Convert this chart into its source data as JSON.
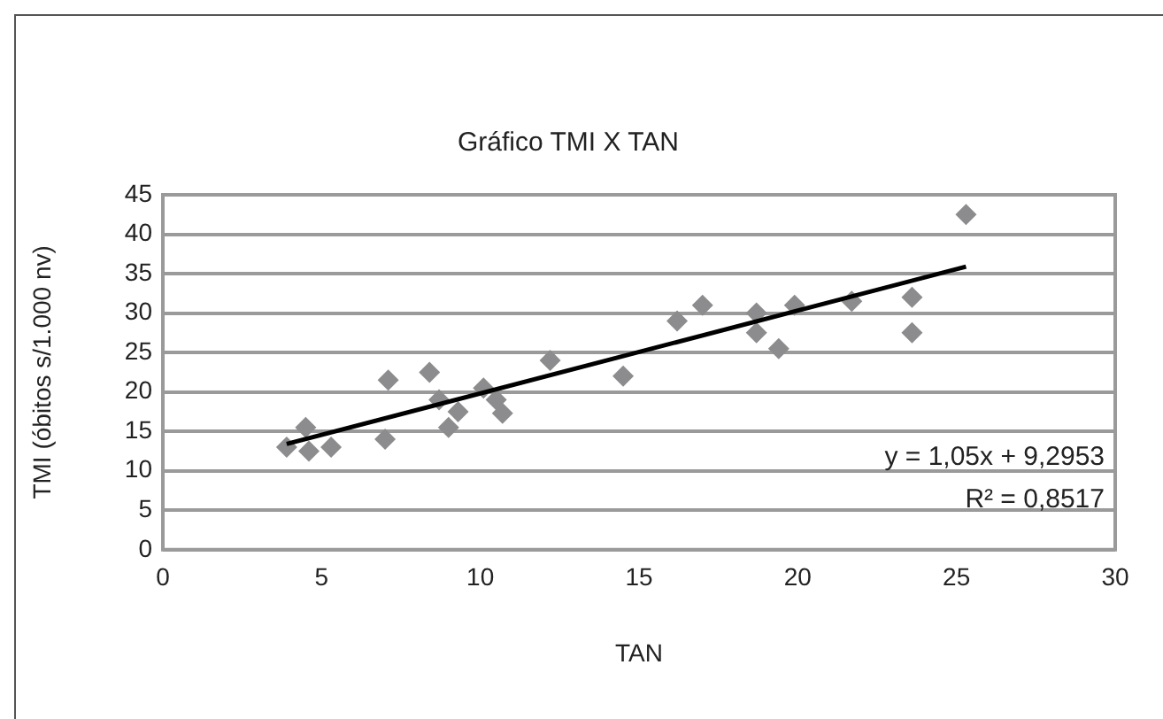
{
  "chart_data": {
    "type": "scatter",
    "title": "Gráfico TMI X TAN",
    "xlabel": "TAN",
    "ylabel": "TMI (óbitos s/1.000 nv)",
    "xlim": [
      0,
      30
    ],
    "xticks": [
      0,
      5,
      10,
      15,
      20,
      25,
      30
    ],
    "ylim": [
      0,
      45
    ],
    "yticks": [
      0,
      5,
      10,
      15,
      20,
      25,
      30,
      35,
      40,
      45
    ],
    "grid": "y",
    "legend": false,
    "marker": "diamond",
    "series": [
      {
        "color": "#8c8c8e",
        "x": [
          3.9,
          4.5,
          4.6,
          5.3,
          7.0,
          7.1,
          8.4,
          8.7,
          9.0,
          9.3,
          10.1,
          10.5,
          10.7,
          12.2,
          14.5,
          16.2,
          17.0,
          18.7,
          18.7,
          19.4,
          19.9,
          21.7,
          23.6,
          23.6,
          25.3
        ],
        "values": [
          13,
          15.5,
          12.5,
          13,
          14,
          21.5,
          22.5,
          19,
          15.5,
          17.5,
          20.5,
          19,
          17.3,
          24,
          22,
          29,
          31,
          30,
          27.5,
          25.5,
          31,
          31.5,
          32,
          27.5,
          42.5
        ]
      },
      {
        "type": "line",
        "color": "#000000",
        "marker": "none",
        "x": [
          3.9,
          25.3
        ],
        "values": [
          13.4,
          35.9
        ]
      }
    ],
    "annotations": [
      "y = 1,05x + 9,2953",
      "R² = 0,8517"
    ]
  }
}
